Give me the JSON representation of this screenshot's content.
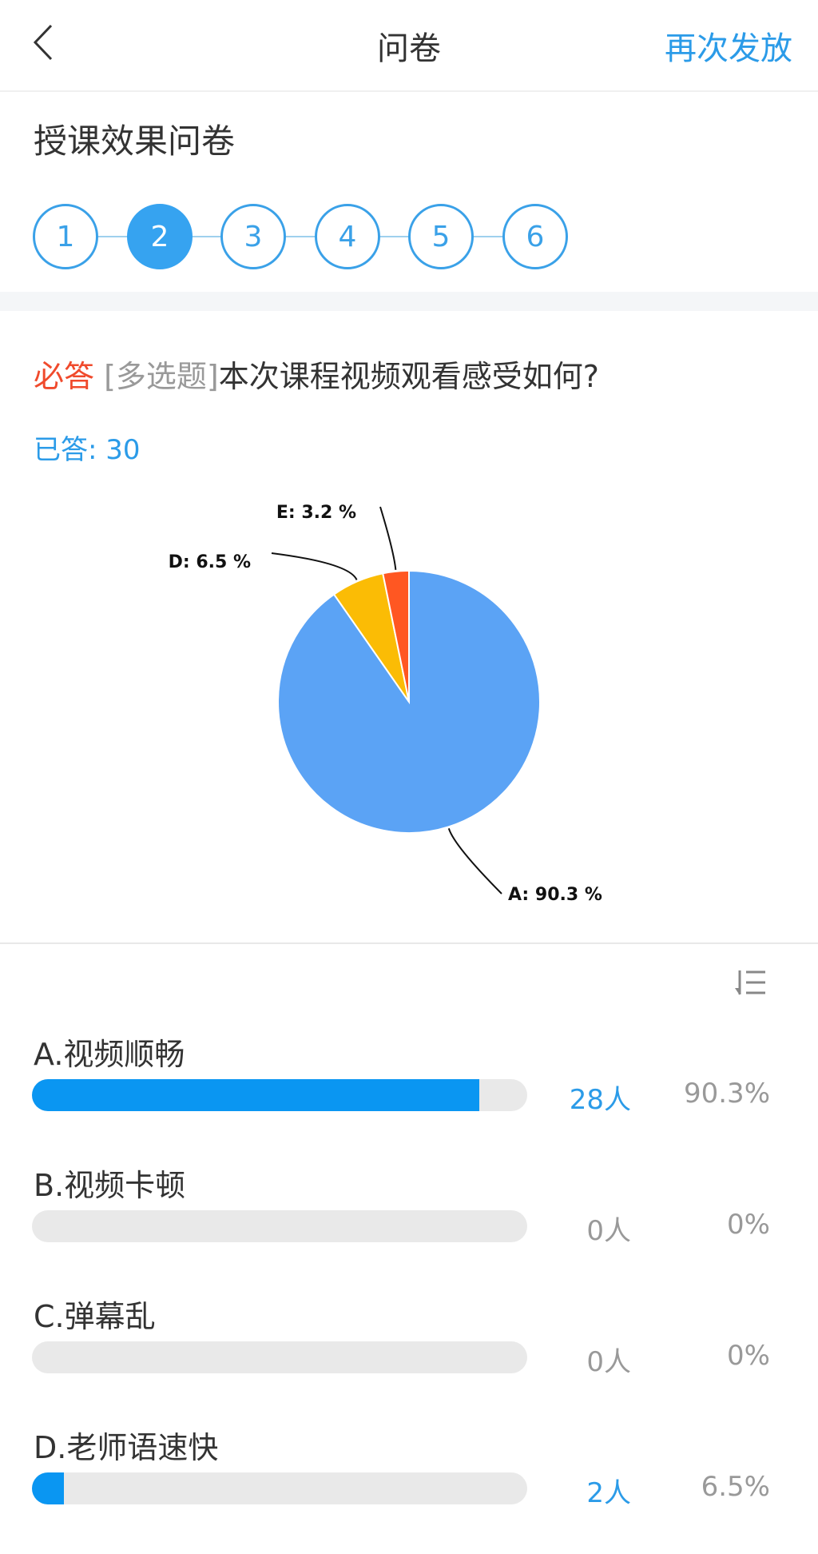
{
  "header": {
    "title": "问卷",
    "reissue_label": "再次发放",
    "back_icon": "chevron-left-icon"
  },
  "survey_title": "授课效果问卷",
  "steps": {
    "items": [
      "1",
      "2",
      "3",
      "4",
      "5",
      "6"
    ],
    "active": "2"
  },
  "question": {
    "required": "必答",
    "type": "[多选题]",
    "text": "本次课程视频观看感受如何?",
    "answered": "已答: 30"
  },
  "colors": {
    "accent": "#2b9be8",
    "required": "#f04a2c",
    "bar": "#0a96f2"
  },
  "chart_data": {
    "type": "pie",
    "slices": [
      {
        "name": "A",
        "value": 90.3,
        "label": "A: 90.3 %",
        "color": "#5ba3f5"
      },
      {
        "name": "D",
        "value": 6.5,
        "label": "D: 6.5 %",
        "color": "#fbbc05"
      },
      {
        "name": "E",
        "value": 3.2,
        "label": "E: 3.2 %",
        "color": "#ff5722"
      }
    ]
  },
  "sort_icon": "sort-list-icon",
  "options": [
    {
      "label": "A.视频顺畅",
      "count": "28人",
      "percent": "90.3%",
      "fraction": 0.903
    },
    {
      "label": "B.视频卡顿",
      "count": "0人",
      "percent": "0%",
      "fraction": 0
    },
    {
      "label": "C.弹幕乱",
      "count": "0人",
      "percent": "0%",
      "fraction": 0
    },
    {
      "label": "D.老师语速快",
      "count": "2人",
      "percent": "6.5%",
      "fraction": 0.065
    }
  ]
}
